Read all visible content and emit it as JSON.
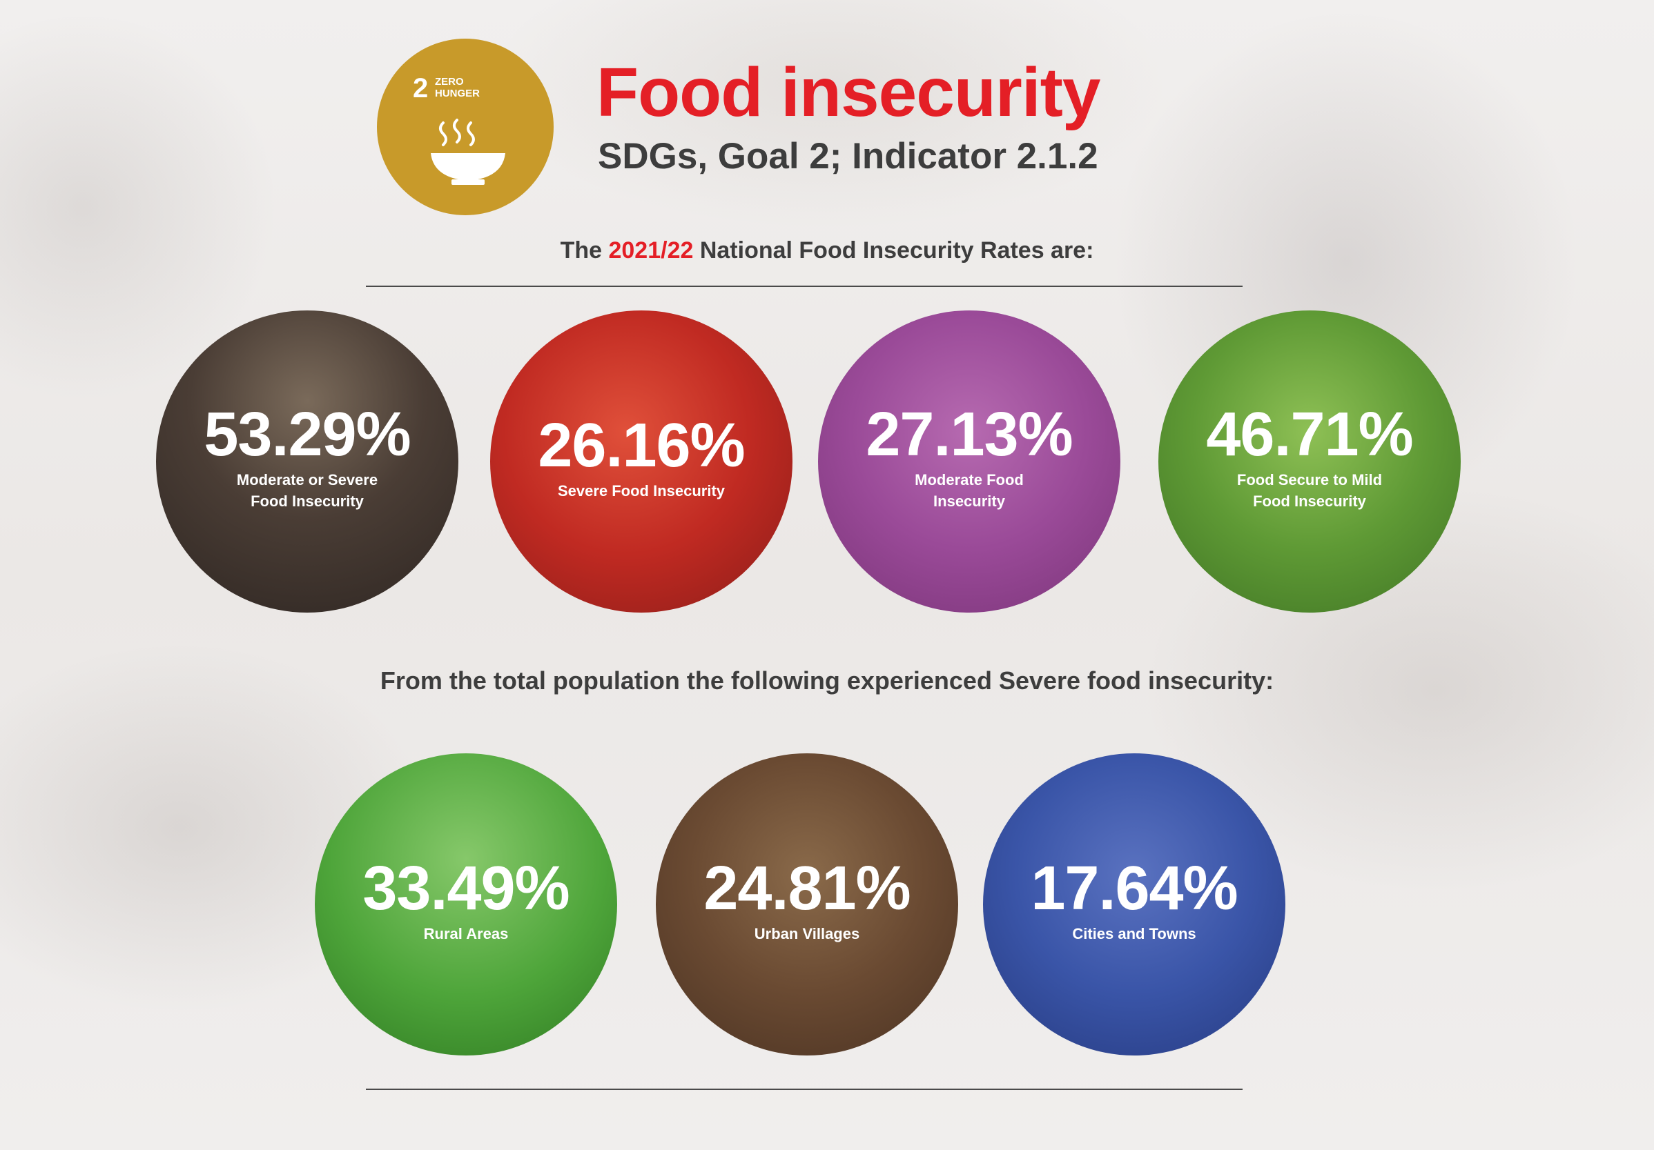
{
  "header": {
    "sdg_number": "2",
    "sdg_label": "ZERO HUNGER",
    "title": "Food insecurity",
    "subtitle": "SDGs, Goal 2; Indicator 2.1.2"
  },
  "intro": {
    "prefix": "The ",
    "highlight": "2021/22",
    "suffix": " National Food Insecurity Rates are:"
  },
  "national_rates": [
    {
      "value": "53.29%",
      "label": "Moderate or Severe Food Insecurity"
    },
    {
      "value": "26.16%",
      "label": "Severe Food Insecurity"
    },
    {
      "value": "27.13%",
      "label": "Moderate Food Insecurity"
    },
    {
      "value": "46.71%",
      "label": "Food Secure to Mild Food Insecurity"
    }
  ],
  "section2": {
    "heading": "From the total  population the following experienced  Severe food insecurity:"
  },
  "severe_by_area": [
    {
      "value": "33.49%",
      "label": "Rural Areas"
    },
    {
      "value": "24.81%",
      "label": "Urban Villages"
    },
    {
      "value": "17.64%",
      "label": "Cities and Towns"
    }
  ],
  "colors": {
    "title_red": "#e41f26",
    "sdg_gold": "#c89a2a",
    "text_dark": "#3d3d3d"
  }
}
